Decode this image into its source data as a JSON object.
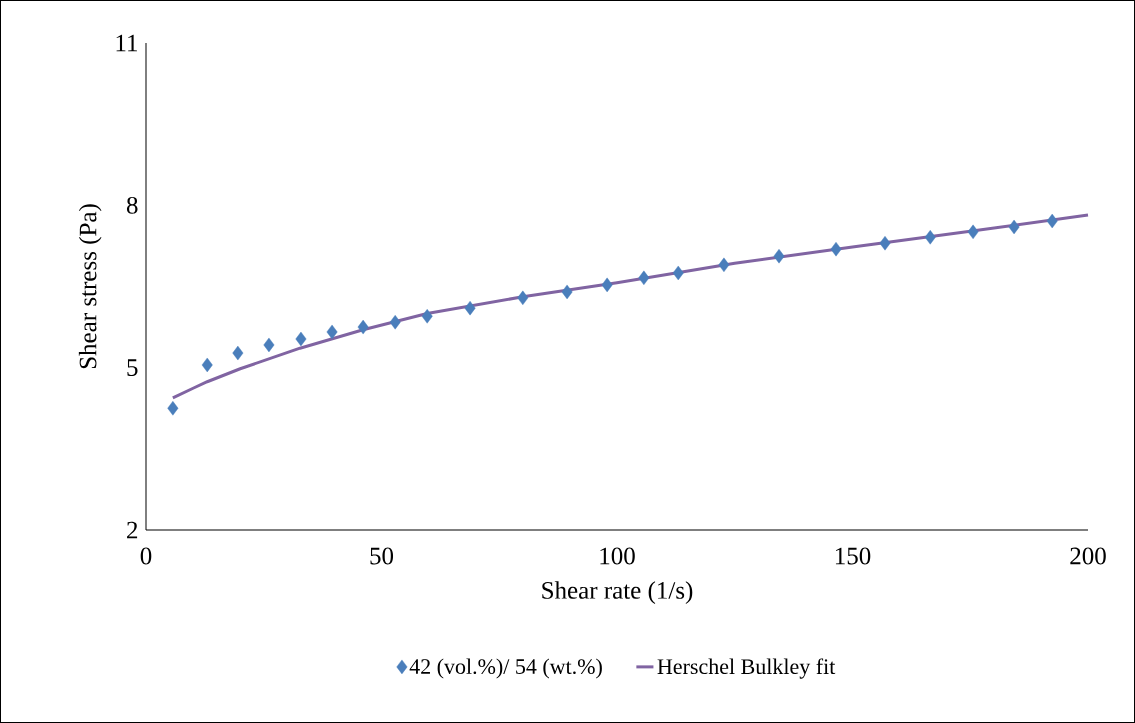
{
  "chart_data": {
    "type": "scatter",
    "xlabel": "Shear rate (1/s)",
    "ylabel": "Shear stress (Pa)",
    "xlim": [
      0,
      200
    ],
    "ylim": [
      2,
      11
    ],
    "xticks": [
      0,
      50,
      100,
      150,
      200
    ],
    "yticks": [
      2,
      5,
      8,
      11
    ],
    "grid": false,
    "legend": "bottom",
    "series": [
      {
        "name": "42 (vol.%)/ 54 (wt.%)",
        "marker": "diamond",
        "color": "#4a7ebb",
        "x": [
          5.7,
          13.0,
          19.5,
          26.1,
          32.9,
          39.5,
          46.1,
          52.9,
          59.7,
          68.8,
          80.0,
          89.4,
          97.9,
          105.7,
          113.0,
          122.7,
          134.4,
          146.5,
          156.9,
          166.5,
          175.6,
          184.3,
          192.4
        ],
        "values": [
          4.25,
          5.05,
          5.27,
          5.42,
          5.53,
          5.66,
          5.75,
          5.84,
          5.95,
          6.1,
          6.29,
          6.4,
          6.53,
          6.66,
          6.75,
          6.9,
          7.06,
          7.19,
          7.3,
          7.41,
          7.51,
          7.6,
          7.71
        ]
      },
      {
        "name": "Herschel Bulkley fit",
        "type": "line",
        "marker": "none",
        "line_style": "solid",
        "color": "#8064a2",
        "x": [
          5.7,
          10,
          13,
          20,
          32.7,
          46.1,
          59.7,
          80,
          100,
          125,
          150,
          175,
          200
        ],
        "values": [
          4.44,
          4.62,
          4.74,
          4.98,
          5.36,
          5.7,
          6.0,
          6.31,
          6.57,
          6.93,
          7.23,
          7.52,
          7.82
        ]
      }
    ]
  }
}
